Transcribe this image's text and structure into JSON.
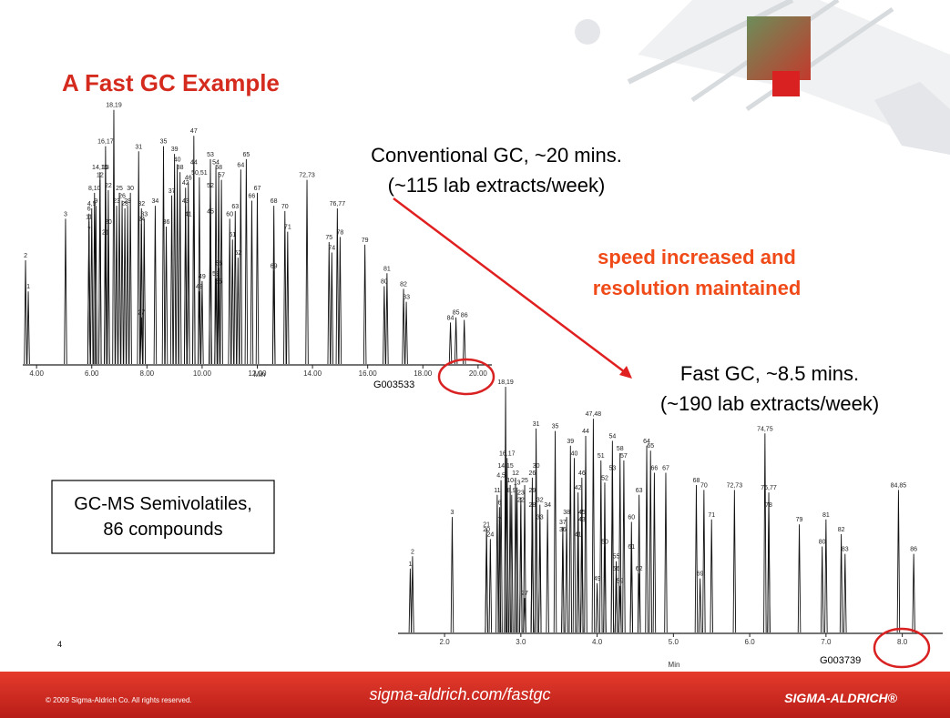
{
  "slide": {
    "title": "A Fast GC Example",
    "conventional_caption": [
      "Conventional GC, ~20 mins.",
      "(~115 lab extracts/week)"
    ],
    "annotation": [
      "speed increased and",
      "resolution maintained"
    ],
    "fast_caption": [
      "Fast GC, ~8.5 mins.",
      "(~190 lab extracts/week)"
    ],
    "sample_box": [
      "GC-MS Semivolatiles,",
      "86 compounds"
    ],
    "page_number": "4",
    "footer": {
      "copyright": "© 2009 Sigma-Aldrich Co. All rights reserved.",
      "url": "sigma-aldrich.com/fastgc",
      "brand": "SIGMA-ALDRICH®"
    }
  },
  "chromatograms": [
    {
      "code": "G003533",
      "x_label": "Min",
      "xlim": [
        3.5,
        20.5
      ],
      "ylim": [
        0,
        100
      ],
      "xticks": [
        {
          "value": 4,
          "label": "4.00"
        },
        {
          "value": 6,
          "label": "6.00"
        },
        {
          "value": 8,
          "label": "8.00"
        },
        {
          "value": 10,
          "label": "10.00"
        },
        {
          "value": 12,
          "label": "12.00"
        },
        {
          "value": 14,
          "label": "14.00"
        },
        {
          "value": 16,
          "label": "16.00"
        },
        {
          "value": 18,
          "label": "18.00"
        },
        {
          "value": 20,
          "label": "20.00"
        }
      ],
      "labels": [
        "1",
        "2",
        "3",
        "4,5",
        "6",
        "7",
        "8,10",
        "9",
        "11",
        "12",
        "13",
        "14,15",
        "16,17",
        "18,19",
        "20",
        "21",
        "22",
        "23",
        "24",
        "25",
        "26",
        "27",
        "28",
        "29",
        "30",
        "31",
        "32",
        "33",
        "34",
        "35",
        "36",
        "37",
        "38",
        "39",
        "40",
        "41",
        "42",
        "43",
        "44",
        "45",
        "46",
        "47",
        "48",
        "49",
        "50,51",
        "52",
        "53",
        "54",
        "55",
        "56",
        "57",
        "58",
        "59",
        "60",
        "61",
        "62",
        "63",
        "64",
        "65",
        "66",
        "67",
        "68",
        "69",
        "70",
        "71",
        "72,73",
        "74",
        "75",
        "76,77",
        "78",
        "79",
        "80",
        "81",
        "82",
        "83",
        "84",
        "85",
        "86"
      ],
      "times": [
        3.7,
        3.6,
        5.05,
        6.0,
        5.9,
        5.9,
        6.1,
        6.15,
        5.9,
        6.3,
        6.5,
        6.3,
        6.5,
        6.8,
        6.6,
        6.5,
        6.6,
        6.9,
        7.8,
        7.0,
        7.1,
        7.8,
        7.2,
        7.3,
        7.4,
        7.7,
        7.8,
        7.9,
        8.3,
        8.6,
        8.7,
        8.9,
        9.2,
        9.0,
        9.1,
        9.5,
        9.4,
        9.4,
        9.7,
        10.3,
        9.5,
        9.7,
        9.9,
        10.0,
        9.9,
        10.3,
        10.3,
        10.5,
        10.6,
        10.6,
        10.7,
        10.6,
        10.5,
        11.0,
        11.1,
        11.3,
        11.2,
        11.4,
        11.6,
        11.8,
        12.0,
        12.6,
        12.6,
        13.0,
        13.1,
        13.8,
        14.7,
        14.6,
        14.9,
        15.0,
        15.9,
        16.6,
        16.7,
        17.3,
        17.4,
        19.0,
        19.2,
        19.5
      ],
      "heights": [
        28,
        40,
        56,
        60,
        58,
        50,
        66,
        61,
        55,
        71,
        74,
        74,
        84,
        98,
        53,
        49,
        67,
        61,
        54,
        66,
        63,
        18,
        60,
        61,
        66,
        82,
        60,
        56,
        61,
        84,
        53,
        65,
        74,
        81,
        77,
        56,
        68,
        61,
        76,
        57,
        70,
        88,
        28,
        32,
        72,
        67,
        79,
        76,
        30,
        37,
        71,
        74,
        33,
        56,
        48,
        41,
        59,
        75,
        79,
        63,
        66,
        61,
        36,
        59,
        51,
        71,
        43,
        47,
        60,
        49,
        46,
        30,
        35,
        29,
        24,
        16,
        18,
        17
      ]
    },
    {
      "code": "G003739",
      "x_label": "Min",
      "xlim": [
        1.39,
        8.53
      ],
      "ylim": [
        0,
        100
      ],
      "xticks": [
        {
          "value": 2,
          "label": "2.0"
        },
        {
          "value": 3,
          "label": "3.0"
        },
        {
          "value": 4,
          "label": "4.0"
        },
        {
          "value": 5,
          "label": "5.0"
        },
        {
          "value": 6,
          "label": "6.0"
        },
        {
          "value": 7,
          "label": "7.0"
        },
        {
          "value": 8,
          "label": "8.0"
        }
      ],
      "labels": [
        "1",
        "2",
        "3",
        "4,5",
        "6",
        "7",
        "8,9",
        "10",
        "11",
        "12",
        "13",
        "14,15",
        "16,17",
        "18,19",
        "20",
        "21",
        "22",
        "23",
        "24",
        "25",
        "26",
        "27",
        "28",
        "29",
        "30",
        "31",
        "32",
        "33",
        "34",
        "35",
        "36",
        "37",
        "38",
        "39",
        "40",
        "41",
        "42",
        "43",
        "44",
        "45",
        "46",
        "47,48",
        "49",
        "50",
        "51",
        "52",
        "53",
        "54",
        "55",
        "56",
        "57",
        "58",
        "59",
        "60",
        "61",
        "62",
        "63",
        "64",
        "65",
        "66",
        "67",
        "68",
        "69",
        "70",
        "71",
        "72,73",
        "74,75",
        "76,77",
        "78",
        "79",
        "80",
        "81",
        "82",
        "83",
        "84,85",
        "86"
      ],
      "times": [
        1.55,
        1.58,
        2.1,
        2.74,
        2.72,
        2.72,
        2.88,
        2.86,
        2.69,
        2.93,
        2.95,
        2.8,
        2.82,
        2.8,
        2.55,
        2.55,
        3.0,
        3.0,
        2.6,
        3.05,
        3.15,
        3.05,
        3.15,
        3.15,
        3.2,
        3.2,
        3.25,
        3.25,
        3.35,
        3.45,
        3.55,
        3.55,
        3.6,
        3.65,
        3.7,
        3.75,
        3.75,
        3.8,
        3.85,
        3.8,
        3.8,
        3.95,
        4.0,
        4.1,
        4.05,
        4.1,
        4.2,
        4.2,
        4.25,
        4.25,
        4.35,
        4.3,
        4.3,
        4.45,
        4.45,
        4.55,
        4.55,
        4.65,
        4.7,
        4.75,
        4.9,
        5.3,
        5.35,
        5.4,
        5.5,
        5.8,
        6.2,
        6.25,
        6.25,
        6.65,
        6.95,
        7.0,
        7.2,
        7.25,
        7.95,
        8.15
      ],
      "heights": [
        26,
        31,
        47,
        62,
        51,
        44,
        56,
        60,
        56,
        63,
        59,
        66,
        71,
        100,
        40,
        42,
        52,
        55,
        38,
        60,
        63,
        14,
        50,
        56,
        66,
        83,
        52,
        45,
        50,
        82,
        40,
        43,
        47,
        76,
        71,
        38,
        57,
        44,
        80,
        47,
        63,
        87,
        20,
        35,
        70,
        61,
        65,
        78,
        29,
        24,
        70,
        73,
        19,
        45,
        33,
        24,
        56,
        76,
        74,
        65,
        65,
        60,
        22,
        58,
        46,
        58,
        81,
        57,
        50,
        44,
        35,
        46,
        40,
        32,
        58,
        32
      ]
    }
  ]
}
